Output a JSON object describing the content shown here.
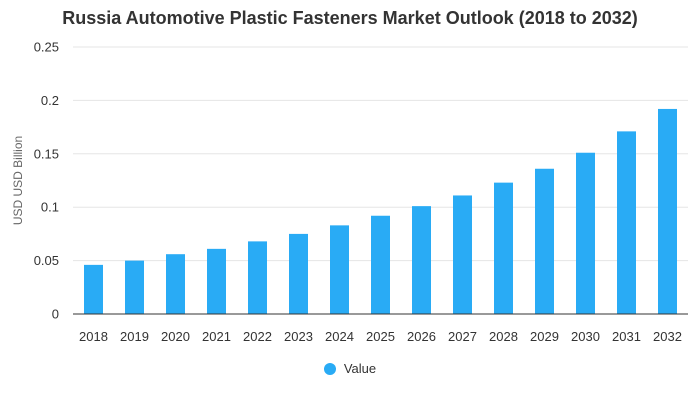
{
  "chart_data": {
    "type": "bar",
    "title": "Russia Automotive Plastic Fasteners Market Outlook (2018 to 2032)",
    "xlabel": "",
    "ylabel": "USD USD Billion",
    "ylim": [
      0,
      0.25
    ],
    "yticks": [
      "0",
      "0.05",
      "0.1",
      "0.15",
      "0.2",
      "0.25"
    ],
    "yticks_values": [
      0,
      0.05,
      0.1,
      0.15,
      0.2,
      0.25
    ],
    "categories": [
      "2018",
      "2019",
      "2020",
      "2021",
      "2022",
      "2023",
      "2024",
      "2025",
      "2026",
      "2027",
      "2028",
      "2029",
      "2030",
      "2031",
      "2032"
    ],
    "series": [
      {
        "name": "Value",
        "values": [
          0.046,
          0.05,
          0.056,
          0.061,
          0.068,
          0.075,
          0.083,
          0.092,
          0.101,
          0.111,
          0.123,
          0.136,
          0.151,
          0.171,
          0.192
        ]
      }
    ],
    "colors": {
      "bar": "#29abf5",
      "grid": "#e5e5e5",
      "axis": "#333333"
    },
    "grid": true,
    "legend_position": "bottom"
  }
}
